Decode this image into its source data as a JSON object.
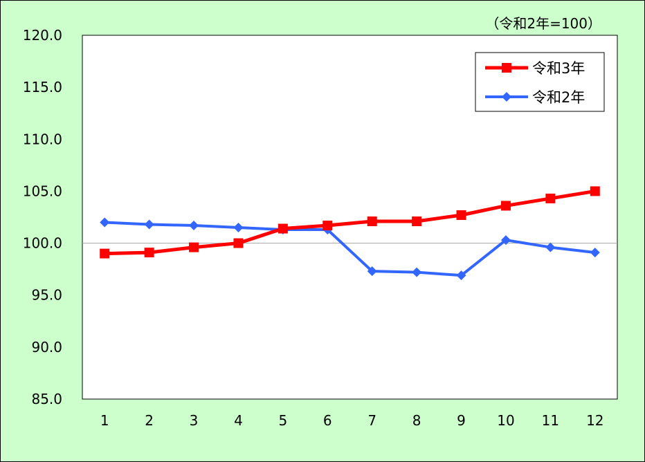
{
  "chart_data": {
    "type": "line",
    "title": "",
    "note": "（令和2年=100）",
    "xlabel": "",
    "ylabel": "",
    "categories": [
      "1",
      "2",
      "3",
      "4",
      "5",
      "6",
      "7",
      "8",
      "9",
      "10",
      "11",
      "12"
    ],
    "ylim": [
      85.0,
      120.0
    ],
    "yticks": [
      85.0,
      90.0,
      95.0,
      100.0,
      105.0,
      110.0,
      115.0,
      120.0
    ],
    "ytick_labels": [
      "85.0",
      "90.0",
      "95.0",
      "100.0",
      "105.0",
      "110.0",
      "115.0",
      "120.0"
    ],
    "reference_line": 100.0,
    "grid": false,
    "legend_position": "top-right",
    "series": [
      {
        "name": "令和3年",
        "color": "#ff0000",
        "marker": "square",
        "values": [
          99.0,
          99.1,
          99.6,
          100.0,
          101.4,
          101.7,
          102.1,
          102.1,
          102.7,
          103.6,
          104.3,
          105.0
        ]
      },
      {
        "name": "令和2年",
        "color": "#3366ff",
        "marker": "diamond",
        "values": [
          102.0,
          101.8,
          101.7,
          101.5,
          101.3,
          101.3,
          97.3,
          97.2,
          96.9,
          100.3,
          99.6,
          99.1
        ]
      }
    ]
  },
  "colors": {
    "background": "#ccffcc",
    "plot_area": "#ffffff",
    "reference_line": "#a6a6a6"
  }
}
